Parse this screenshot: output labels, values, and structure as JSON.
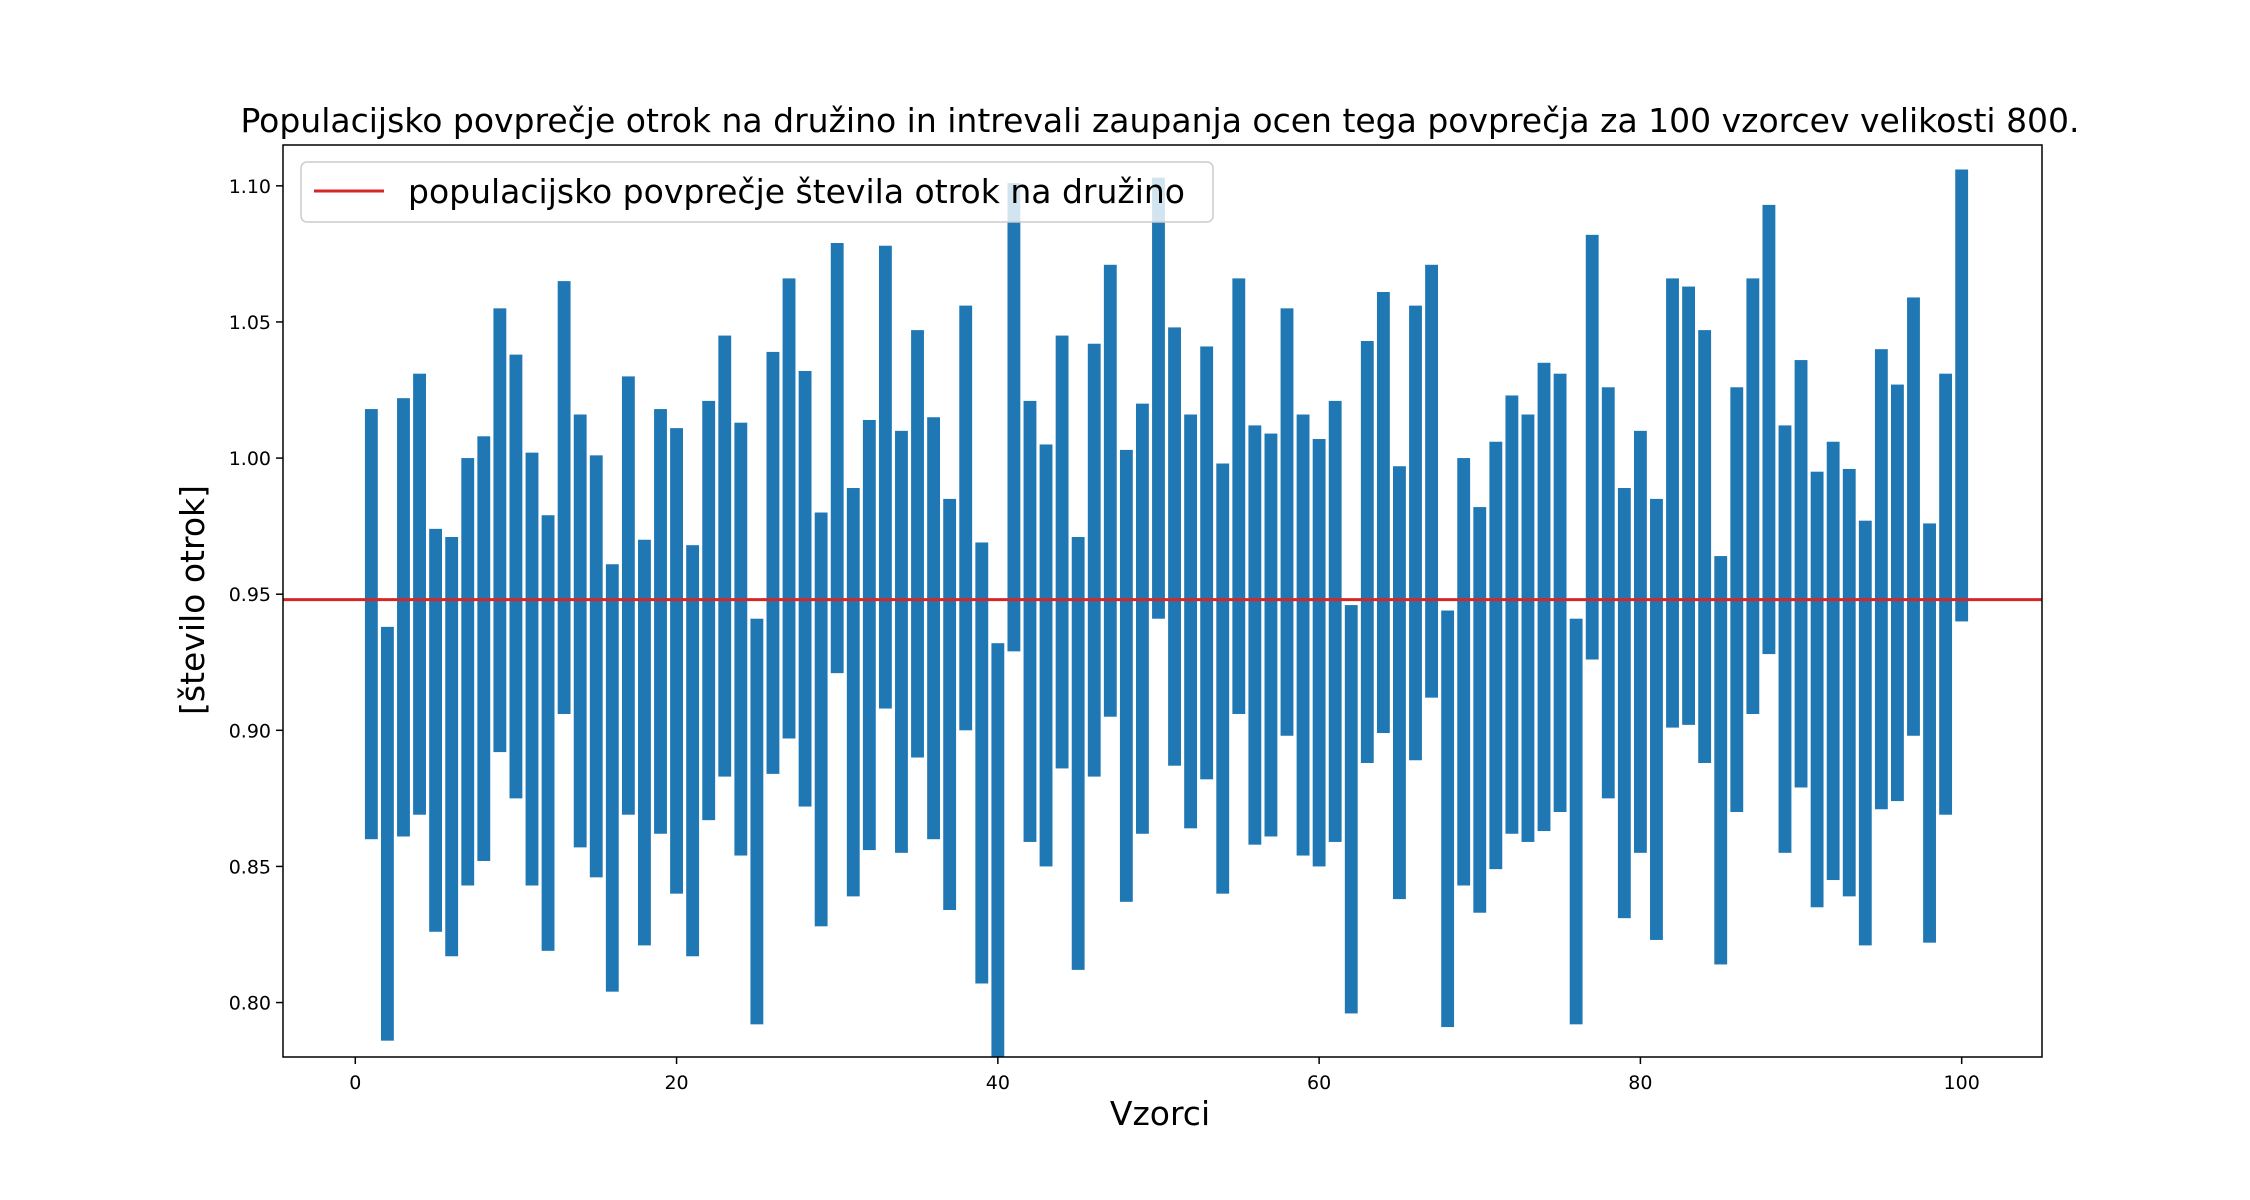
{
  "chart_data": {
    "type": "bar",
    "title": "Populacijsko povprečje otrok na družino in intrevali zaupanja ocen tega povprečja za 100 vzorcev velikosti 800.",
    "xlabel": "Vzorci",
    "ylabel": "[število otrok]",
    "xlim": [
      -4.5,
      105
    ],
    "ylim": [
      0.78,
      1.115
    ],
    "x_ticks": [
      0,
      20,
      40,
      60,
      80,
      100
    ],
    "y_ticks": [
      0.8,
      0.85,
      0.9,
      0.95,
      1.0,
      1.05,
      1.1
    ],
    "x_tick_labels": [
      "0",
      "20",
      "40",
      "60",
      "80",
      "100"
    ],
    "y_tick_labels": [
      "0.80",
      "0.85",
      "0.90",
      "0.95",
      "1.00",
      "1.05",
      "1.10"
    ],
    "grid": false,
    "legend": {
      "position": "top-left",
      "entries": [
        "populacijsko povprečje števila otrok na družino"
      ]
    },
    "bar_color": "#1f77b4",
    "reference_line": {
      "name": "populacijsko povprečje števila otrok na družino",
      "value": 0.948,
      "color": "#d62728"
    },
    "x": [
      1,
      2,
      3,
      4,
      5,
      6,
      7,
      8,
      9,
      10,
      11,
      12,
      13,
      14,
      15,
      16,
      17,
      18,
      19,
      20,
      21,
      22,
      23,
      24,
      25,
      26,
      27,
      28,
      29,
      30,
      31,
      32,
      33,
      34,
      35,
      36,
      37,
      38,
      39,
      40,
      41,
      42,
      43,
      44,
      45,
      46,
      47,
      48,
      49,
      50,
      51,
      52,
      53,
      54,
      55,
      56,
      57,
      58,
      59,
      60,
      61,
      62,
      63,
      64,
      65,
      66,
      67,
      68,
      69,
      70,
      71,
      72,
      73,
      74,
      75,
      76,
      77,
      78,
      79,
      80,
      81,
      82,
      83,
      84,
      85,
      86,
      87,
      88,
      89,
      90,
      91,
      92,
      93,
      94,
      95,
      96,
      97,
      98,
      99,
      100
    ],
    "lower": [
      0.86,
      0.786,
      0.861,
      0.869,
      0.826,
      0.817,
      0.843,
      0.852,
      0.892,
      0.875,
      0.843,
      0.819,
      0.906,
      0.857,
      0.846,
      0.804,
      0.869,
      0.821,
      0.862,
      0.84,
      0.817,
      0.867,
      0.883,
      0.854,
      0.792,
      0.884,
      0.897,
      0.872,
      0.828,
      0.921,
      0.839,
      0.856,
      0.908,
      0.855,
      0.89,
      0.86,
      0.834,
      0.9,
      0.807,
      0.779,
      0.929,
      0.859,
      0.85,
      0.886,
      0.812,
      0.883,
      0.905,
      0.837,
      0.862,
      0.941,
      0.887,
      0.864,
      0.882,
      0.84,
      0.906,
      0.858,
      0.861,
      0.898,
      0.854,
      0.85,
      0.859,
      0.796,
      0.888,
      0.899,
      0.838,
      0.889,
      0.912,
      0.791,
      0.843,
      0.833,
      0.849,
      0.862,
      0.859,
      0.863,
      0.87,
      0.792,
      0.926,
      0.875,
      0.831,
      0.855,
      0.823,
      0.901,
      0.902,
      0.888,
      0.814,
      0.87,
      0.906,
      0.928,
      0.855,
      0.879,
      0.835,
      0.845,
      0.839,
      0.821,
      0.871,
      0.874,
      0.898,
      0.822,
      0.869,
      0.94
    ],
    "upper": [
      1.018,
      0.938,
      1.022,
      1.031,
      0.974,
      0.971,
      1.0,
      1.008,
      1.055,
      1.038,
      1.002,
      0.979,
      1.065,
      1.016,
      1.001,
      0.961,
      1.03,
      0.97,
      1.018,
      1.011,
      0.968,
      1.021,
      1.045,
      1.013,
      0.941,
      1.039,
      1.066,
      1.032,
      0.98,
      1.079,
      0.989,
      1.014,
      1.078,
      1.01,
      1.047,
      1.015,
      0.985,
      1.056,
      0.969,
      0.932,
      1.101,
      1.021,
      1.005,
      1.045,
      0.971,
      1.042,
      1.071,
      1.003,
      1.02,
      1.103,
      1.048,
      1.016,
      1.041,
      0.998,
      1.066,
      1.012,
      1.009,
      1.055,
      1.016,
      1.007,
      1.021,
      0.946,
      1.043,
      1.061,
      0.997,
      1.056,
      1.071,
      0.944,
      1.0,
      0.982,
      1.006,
      1.023,
      1.016,
      1.035,
      1.031,
      0.941,
      1.082,
      1.026,
      0.989,
      1.01,
      0.985,
      1.066,
      1.063,
      1.047,
      0.964,
      1.026,
      1.066,
      1.093,
      1.012,
      1.036,
      0.995,
      1.006,
      0.996,
      0.977,
      1.04,
      1.027,
      1.059,
      0.976,
      1.031,
      1.106
    ]
  }
}
